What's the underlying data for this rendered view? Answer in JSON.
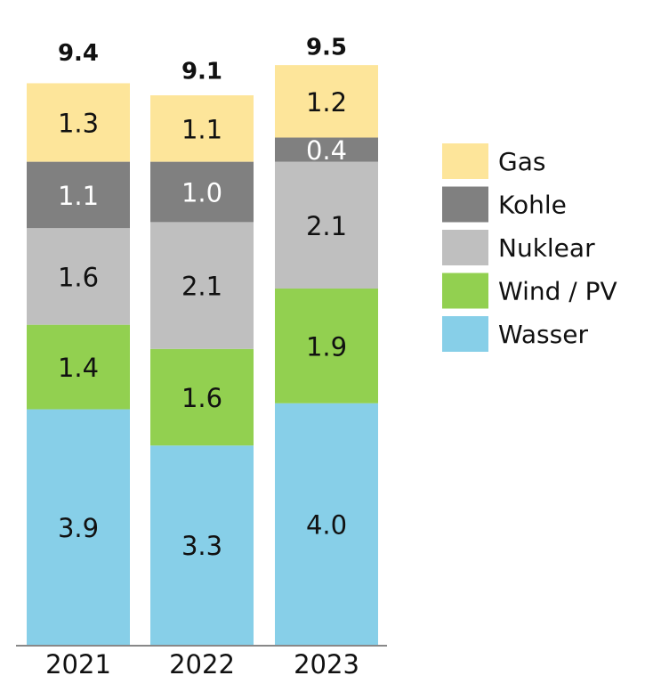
{
  "chart_data": {
    "type": "stacked_bar",
    "categories": [
      "2021",
      "2022",
      "2023"
    ],
    "totals": [
      9.4,
      9.1,
      9.5
    ],
    "series": [
      {
        "name": "Wasser",
        "color": "#87cfe8",
        "values": [
          3.9,
          3.3,
          4.0
        ],
        "value_labels": [
          "3.9",
          "3.3",
          "4.0"
        ]
      },
      {
        "name": "Wind / PV",
        "color": "#92d050",
        "values": [
          1.4,
          1.6,
          1.9
        ],
        "value_labels": [
          "1.4",
          "1.6",
          "1.9"
        ]
      },
      {
        "name": "Nuklear",
        "color": "#bfbfbf",
        "values": [
          1.6,
          2.1,
          2.1
        ],
        "value_labels": [
          "1.6",
          "2.1",
          "2.1"
        ]
      },
      {
        "name": "Kohle",
        "color": "#808080",
        "values": [
          1.1,
          1.0,
          0.4
        ],
        "value_labels": [
          "1.1",
          "1.0",
          "0.4"
        ]
      },
      {
        "name": "Gas",
        "color": "#fde59a",
        "values": [
          1.3,
          1.1,
          1.2
        ],
        "value_labels": [
          "1.3",
          "1.1",
          "1.2"
        ]
      }
    ]
  }
}
